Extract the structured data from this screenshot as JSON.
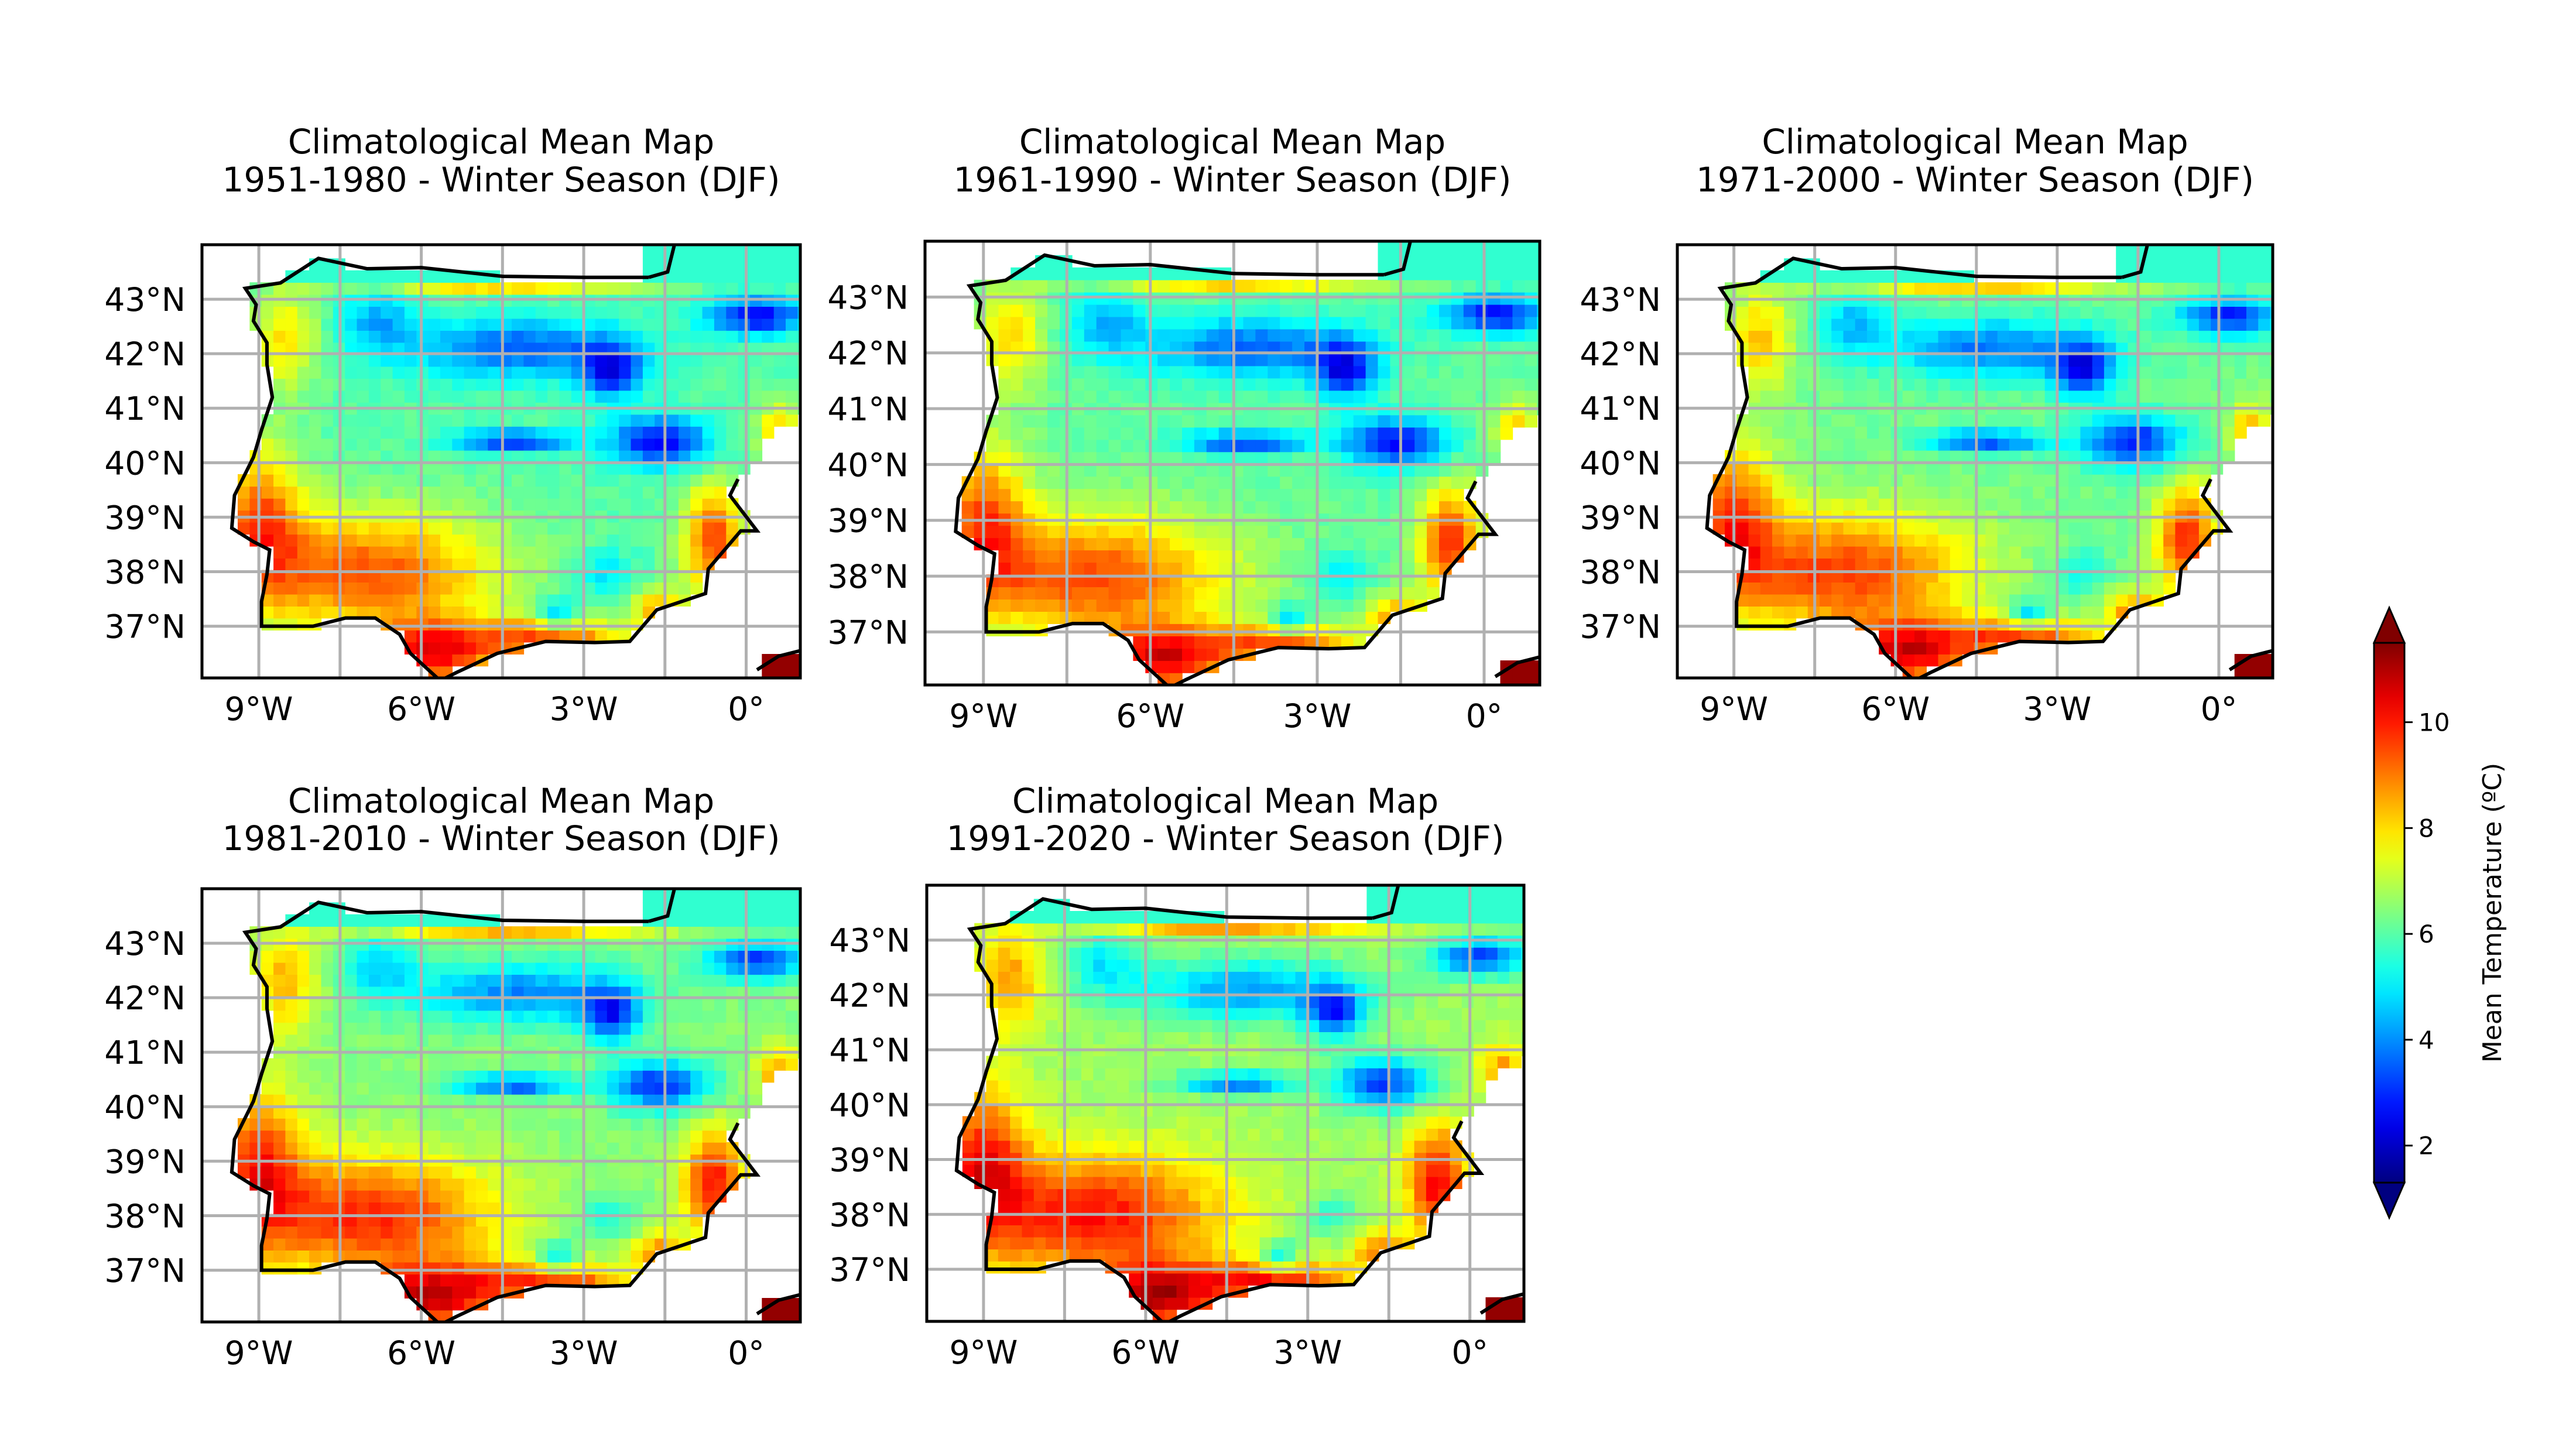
{
  "figure": {
    "panels": [
      {
        "title_line1": "Climatological Mean Map",
        "title_line2": "1951-1980 - Winter Season (DJF)"
      },
      {
        "title_line1": "Climatological Mean Map",
        "title_line2": "1961-1990 - Winter Season (DJF)"
      },
      {
        "title_line1": "Climatological Mean Map",
        "title_line2": "1971-2000 - Winter Season (DJF)"
      },
      {
        "title_line1": "Climatological Mean Map",
        "title_line2": "1981-2010 - Winter Season (DJF)"
      },
      {
        "title_line1": "Climatological Mean Map",
        "title_line2": "1991-2020 - Winter Season (DJF)"
      }
    ],
    "lat_ticks": [
      "43°N",
      "42°N",
      "41°N",
      "40°N",
      "39°N",
      "38°N",
      "37°N"
    ],
    "lon_ticks": [
      "9°W",
      "6°W",
      "3°W",
      "0°"
    ]
  },
  "colorbar": {
    "label": "Mean Temperature (ºC)",
    "ticks": [
      "2",
      "4",
      "6",
      "8",
      "10"
    ],
    "vmin": 1.3,
    "vmax": 11.5,
    "colormap": "jet",
    "extend": "both"
  },
  "chart_data": {
    "type": "heatmap",
    "region": "Iberian Peninsula",
    "variable": "Mean Temperature (ºC)",
    "season": "Winter Season (DJF)",
    "periods": [
      "1951-1980",
      "1961-1990",
      "1971-2000",
      "1981-2010",
      "1991-2020"
    ],
    "lon_range": [
      -10,
      1
    ],
    "lat_range": [
      36,
      44
    ],
    "lon_ticks": [
      -9,
      -6,
      -3,
      0
    ],
    "lat_ticks": [
      43,
      42,
      41,
      40,
      39,
      38,
      37
    ],
    "value_range": [
      1.3,
      11.5
    ],
    "grid": true
  }
}
